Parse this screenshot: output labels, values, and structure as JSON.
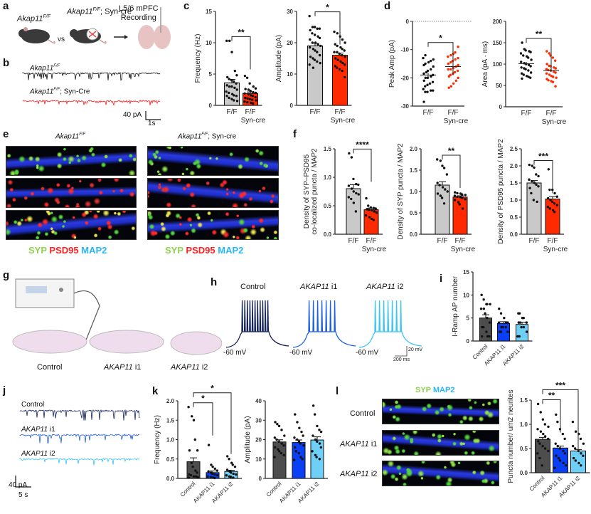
{
  "panels": {
    "a": "a",
    "b": "b",
    "c": "c",
    "d": "d",
    "e": "e",
    "f": "f",
    "g": "g",
    "h": "h",
    "i": "i",
    "j": "j",
    "k": "k",
    "l": "l"
  },
  "panel_a": {
    "group1": "Akap11",
    "group1_sup": "F/F",
    "vs": "vs",
    "group2": "Akap11",
    "group2_sup": "F/F",
    "group2_suffix": "; Syn-cre",
    "recording_line1": "L5/6 mPFC",
    "recording_line2": "Recording"
  },
  "panel_b": {
    "trace1": "Akap11",
    "trace1_sup": "F/F",
    "trace2": "Akap11",
    "trace2_sup": "F/F",
    "trace2_suffix": "; Syn-Cre",
    "scale_y": "40 pA",
    "scale_x": "1s"
  },
  "panel_e": {
    "col1": "Akap11",
    "col1_sup": "F/F",
    "col2": "Akap11",
    "col2_sup": "F/F",
    "col2_suffix": "; Syn-cre",
    "legend_syp": "SYP",
    "legend_psd95": "PSD95",
    "legend_map2": "MAP2"
  },
  "panel_g": {
    "labels": [
      "Control",
      "AKAP11",
      "AKAP11"
    ],
    "suffixes": [
      "",
      "i1",
      "i2"
    ]
  },
  "panel_h": {
    "titles": [
      "Control",
      "AKAP11",
      "AKAP11"
    ],
    "suffixes": [
      "",
      "i1",
      "i2"
    ],
    "baseline": "-60 mV",
    "scale_y": "20 mV",
    "scale_x": "200 ms"
  },
  "panel_j": {
    "labels": [
      "Control",
      "AKAP11",
      "AKAP11"
    ],
    "suffixes": [
      "",
      "i1",
      "i2"
    ],
    "scale_y": "40 pA",
    "scale_x": "5 s"
  },
  "panel_l": {
    "rows": [
      "Control",
      "AKAP11",
      "AKAP11"
    ],
    "suffixes": [
      "",
      "i1",
      "i2"
    ],
    "legend_syp": "SYP",
    "legend_map2": "MAP2"
  },
  "colors": {
    "grey": "#c9c9c9",
    "red": "#ff2a00",
    "dark": "#4d4d4d",
    "blue": "#0b3ff5",
    "lightblue": "#6fd0f7",
    "black": "#111111"
  },
  "chart_data": [
    {
      "id": "c1",
      "type": "bar",
      "ylabel": [
        "Frequency (Hz)"
      ],
      "ylim": [
        0,
        15
      ],
      "ticks": [
        0,
        5,
        10,
        15
      ],
      "categories": [
        "F/F",
        "F/F\nSyn-cre"
      ],
      "series": [
        {
          "name": "F/F",
          "color": "#c9c9c9",
          "mean": 3.6,
          "sem": 0.55,
          "points": [
            10.3,
            10.3,
            8.5,
            5.5,
            4.8,
            4.5,
            4.2,
            4,
            3.8,
            3.5,
            3.2,
            3,
            3,
            2.8,
            2.5,
            2.2,
            2,
            1.8,
            1.6,
            1.5,
            1.5,
            1.2,
            1,
            0.8,
            0.7
          ]
        },
        {
          "name": "F/F Syn-cre",
          "color": "#ff2a00",
          "mean": 1.9,
          "sem": 0.25,
          "points": [
            4.7,
            4.4,
            3.5,
            3,
            2.7,
            2.6,
            2.5,
            2.3,
            2.1,
            2,
            1.9,
            1.8,
            1.6,
            1.5,
            1.3,
            1.2,
            1.1,
            1,
            0.9,
            0.8,
            0.6,
            0.5,
            0.4,
            0.3
          ]
        }
      ],
      "significance": [
        {
          "between": [
            0,
            1
          ],
          "label": "**"
        }
      ]
    },
    {
      "id": "c2",
      "type": "bar",
      "ylabel": [
        "Amplitude (pA)"
      ],
      "ylim": [
        0,
        30
      ],
      "ticks": [
        0,
        10,
        20,
        30
      ],
      "categories": [
        "F/F",
        "F/F\nSyn-cre"
      ],
      "series": [
        {
          "name": "F/F",
          "color": "#c9c9c9",
          "mean": 19,
          "sem": 0.8,
          "points": [
            28.5,
            25,
            25,
            24.5,
            24.5,
            24,
            23,
            22.5,
            22,
            21.5,
            21,
            20,
            20,
            19.5,
            19,
            18.5,
            18,
            17.5,
            17,
            16,
            15.5,
            15,
            14.5,
            14,
            13.5,
            13,
            12
          ]
        },
        {
          "name": "F/F Syn-cre",
          "color": "#ff2a00",
          "mean": 16,
          "sem": 0.7,
          "points": [
            23.5,
            23,
            22,
            21,
            20,
            19.5,
            19,
            18.5,
            18,
            17.5,
            17,
            17,
            16.5,
            16,
            15.5,
            15,
            14.5,
            14,
            13.5,
            13,
            12.5,
            12,
            11.5,
            11,
            9
          ]
        }
      ],
      "significance": [
        {
          "between": [
            0,
            1
          ],
          "label": "*"
        }
      ]
    },
    {
      "id": "d1",
      "type": "scatter",
      "ylabel": [
        "Peak Amp (pA)"
      ],
      "ylim": [
        -30,
        0
      ],
      "ticks": [
        -30,
        -20,
        -10,
        0
      ],
      "zero_line": true,
      "categories": [
        "F/F",
        "F/F\nSyn-cre"
      ],
      "series": [
        {
          "name": "F/F",
          "color": "#111111",
          "mean": -19,
          "sem": 0.8,
          "points": [
            -28.5,
            -25,
            -25,
            -24.5,
            -24.5,
            -24,
            -23,
            -22.5,
            -22,
            -21.5,
            -21,
            -20,
            -20,
            -19.5,
            -19,
            -18.5,
            -18,
            -17.5,
            -17,
            -16,
            -15.5,
            -15,
            -14.5,
            -14,
            -13.5,
            -13,
            -12
          ]
        },
        {
          "name": "F/F Syn-cre",
          "color": "#ff2a00",
          "mean": -16,
          "sem": 0.7,
          "points": [
            -23.5,
            -23,
            -22,
            -21,
            -20,
            -19.5,
            -19,
            -18.5,
            -18,
            -17.5,
            -17,
            -17,
            -16.5,
            -16,
            -15.5,
            -15,
            -14.5,
            -14,
            -13.5,
            -13,
            -12.5,
            -12,
            -11.5,
            -11,
            -9
          ]
        }
      ],
      "significance": [
        {
          "between": [
            0,
            1
          ],
          "label": "*"
        }
      ]
    },
    {
      "id": "d2",
      "type": "scatter",
      "ylabel": [
        "Area (pA · ms)"
      ],
      "ylim": [
        0,
        200
      ],
      "ticks": [
        0,
        50,
        100,
        150,
        200
      ],
      "categories": [
        "F/F",
        "F/F\nSyn-cre"
      ],
      "series": [
        {
          "name": "F/F",
          "color": "#111111",
          "mean": 101,
          "sem": 4,
          "points": [
            150,
            135,
            132,
            130,
            128,
            125,
            120,
            118,
            115,
            110,
            105,
            102,
            100,
            98,
            95,
            92,
            90,
            88,
            85,
            80,
            78,
            75,
            72,
            70,
            68,
            66
          ]
        },
        {
          "name": "F/F Syn-cre",
          "color": "#ff2a00",
          "mean": 85,
          "sem": 3.5,
          "points": [
            130,
            125,
            120,
            115,
            108,
            100,
            96,
            95,
            92,
            90,
            88,
            86,
            85,
            82,
            80,
            78,
            75,
            72,
            70,
            68,
            65,
            62,
            60,
            58,
            48
          ]
        }
      ],
      "significance": [
        {
          "between": [
            0,
            1
          ],
          "label": "**"
        }
      ]
    },
    {
      "id": "f1",
      "type": "bar",
      "ylabel": [
        "Density of SYP–PSD95",
        "co-localized puncta / MAP2"
      ],
      "ylim": [
        0,
        1.5
      ],
      "ticks": [
        0.0,
        0.5,
        1.0,
        1.5
      ],
      "tick_decimals": 1,
      "categories": [
        "F/F",
        "F/F\nSyn-cre"
      ],
      "series": [
        {
          "name": "F/F",
          "color": "#c9c9c9",
          "mean": 0.8,
          "sem": 0.07,
          "points": [
            1.42,
            1.35,
            0.97,
            0.88,
            0.87,
            0.85,
            0.8,
            0.75,
            0.72,
            0.7,
            0.65,
            0.62,
            0.55,
            0.4
          ]
        },
        {
          "name": "F/F Syn-cre",
          "color": "#ff2a00",
          "mean": 0.43,
          "sem": 0.03,
          "points": [
            0.63,
            0.5,
            0.47,
            0.46,
            0.45,
            0.44,
            0.43,
            0.42,
            0.4,
            0.38,
            0.33,
            0.3,
            0.27,
            0.25
          ]
        }
      ],
      "significance": [
        {
          "between": [
            0,
            1
          ],
          "label": "****"
        }
      ]
    },
    {
      "id": "f2",
      "type": "bar",
      "ylabel": [
        "Density of SYP puncta / MAP2"
      ],
      "ylim": [
        0,
        2
      ],
      "ticks": [
        0.0,
        0.5,
        1.0,
        1.5,
        2.0
      ],
      "tick_decimals": 1,
      "categories": [
        "F/F",
        "F/F\nSyn-cre"
      ],
      "series": [
        {
          "name": "F/F",
          "color": "#c9c9c9",
          "mean": 1.15,
          "sem": 0.08,
          "points": [
            1.75,
            1.72,
            1.6,
            1.55,
            1.4,
            1.2,
            1.15,
            1.1,
            1.05,
            1.0,
            0.95,
            0.9,
            0.85,
            0.72
          ]
        },
        {
          "name": "F/F Syn-cre",
          "color": "#ff2a00",
          "mean": 0.87,
          "sem": 0.03,
          "points": [
            0.98,
            0.96,
            0.95,
            0.93,
            0.92,
            0.9,
            0.88,
            0.87,
            0.85,
            0.82,
            0.8,
            0.75,
            0.7,
            0.6
          ]
        }
      ],
      "significance": [
        {
          "between": [
            0,
            1
          ],
          "label": "**"
        }
      ]
    },
    {
      "id": "f3",
      "type": "bar",
      "ylabel": [
        "Density of PSD95 puncta / MAP2"
      ],
      "ylim": [
        0,
        2.5
      ],
      "ticks": [
        0.0,
        0.5,
        1.0,
        1.5,
        2.0,
        2.5
      ],
      "tick_decimals": 1,
      "categories": [
        "F/F",
        "F/F\nSyn-cre"
      ],
      "series": [
        {
          "name": "F/F",
          "color": "#c9c9c9",
          "mean": 1.5,
          "sem": 0.07,
          "points": [
            2.03,
            2.0,
            1.95,
            1.75,
            1.7,
            1.6,
            1.55,
            1.5,
            1.45,
            1.4,
            1.35,
            1.2,
            1.0,
            0.95
          ]
        },
        {
          "name": "F/F Syn-cre",
          "color": "#ff2a00",
          "mean": 1.03,
          "sem": 0.07,
          "points": [
            1.9,
            1.3,
            1.3,
            1.2,
            1.1,
            1.05,
            1.0,
            0.95,
            0.9,
            0.85,
            0.8,
            0.75,
            0.7,
            0.65
          ]
        }
      ],
      "significance": [
        {
          "between": [
            0,
            1
          ],
          "label": "***"
        }
      ]
    },
    {
      "id": "i",
      "type": "bar",
      "ylabel": [
        "I-Ramp AP number"
      ],
      "ylim": [
        0,
        15
      ],
      "ticks": [
        0,
        5,
        10,
        15
      ],
      "rotate_labels": true,
      "categories": [
        "Control",
        "AKAP11 i1",
        "AKAP11 i2"
      ],
      "series": [
        {
          "name": "Control",
          "color": "#4d4d4d",
          "mean": 5.0,
          "sem": 0.7,
          "points": [
            10,
            9,
            8,
            8,
            8,
            7,
            7,
            6,
            5,
            4,
            3,
            3,
            2,
            1,
            1,
            1
          ]
        },
        {
          "name": "AKAP11 i1",
          "color": "#0b3ff5",
          "mean": 3.8,
          "sem": 0.4,
          "points": [
            7,
            6,
            5,
            4,
            4,
            4,
            3,
            3,
            3,
            2,
            2,
            2
          ]
        },
        {
          "name": "AKAP11 i2",
          "color": "#6fd0f7",
          "mean": 3.6,
          "sem": 0.5,
          "points": [
            6,
            6,
            5,
            5,
            4,
            4,
            4,
            3,
            3,
            2,
            1,
            1
          ]
        }
      ],
      "significance": []
    },
    {
      "id": "k1",
      "type": "bar",
      "ylabel": [
        "Frequency (Hz)"
      ],
      "ylim": [
        0,
        2
      ],
      "ticks": [
        0.0,
        0.5,
        1.0,
        1.5,
        2.0
      ],
      "tick_decimals": 1,
      "rotate_labels": true,
      "categories": [
        "Control",
        "AKAP11 i1",
        "AKAP11 i2"
      ],
      "series": [
        {
          "name": "Control",
          "color": "#4d4d4d",
          "mean": 0.43,
          "sem": 0.1,
          "points": [
            1.84,
            1.6,
            1.5,
            1.0,
            0.72,
            0.72,
            0.4,
            0.3,
            0.2,
            0.15,
            0.1,
            0.08,
            0.05,
            0.05,
            0.03,
            0.02
          ]
        },
        {
          "name": "AKAP11 i1",
          "color": "#0b3ff5",
          "mean": 0.15,
          "sem": 0.04,
          "points": [
            0.86,
            0.35,
            0.3,
            0.25,
            0.2,
            0.18,
            0.15,
            0.12,
            0.1,
            0.08,
            0.05,
            0.03,
            0.02,
            0.01
          ]
        },
        {
          "name": "AKAP11 i2",
          "color": "#6fd0f7",
          "mean": 0.18,
          "sem": 0.03,
          "points": [
            0.57,
            0.5,
            0.4,
            0.35,
            0.3,
            0.22,
            0.18,
            0.15,
            0.12,
            0.1,
            0.08,
            0.05,
            0.04,
            0.02
          ]
        }
      ],
      "significance": [
        {
          "between": [
            0,
            1
          ],
          "label": "*"
        },
        {
          "between": [
            0,
            2
          ],
          "label": "*"
        }
      ]
    },
    {
      "id": "k2",
      "type": "bar",
      "ylabel": [
        "Amplitude (pA)"
      ],
      "ylim": [
        0,
        40
      ],
      "ticks": [
        0,
        10,
        20,
        30,
        40
      ],
      "rotate_labels": true,
      "categories": [
        "Control",
        "AKAP11 i1",
        "AKAP11 i2"
      ],
      "series": [
        {
          "name": "Control",
          "color": "#4d4d4d",
          "mean": 18.8,
          "sem": 1.1,
          "points": [
            29,
            28,
            27,
            25,
            22,
            21,
            20,
            19,
            18,
            17,
            16,
            15,
            14,
            13,
            12,
            11
          ]
        },
        {
          "name": "AKAP11 i1",
          "color": "#0b3ff5",
          "mean": 18.5,
          "sem": 1.3,
          "points": [
            33,
            29,
            26,
            24,
            22,
            21,
            20,
            19,
            18,
            17,
            16,
            14,
            13,
            11,
            10,
            9.5
          ]
        },
        {
          "name": "AKAP11 i2",
          "color": "#6fd0f7",
          "mean": 19.8,
          "sem": 1.6,
          "points": [
            37.5,
            33,
            27,
            25,
            24,
            22,
            20,
            19,
            18,
            16,
            14,
            12,
            11,
            10
          ]
        }
      ],
      "significance": []
    },
    {
      "id": "l",
      "type": "bar",
      "ylabel": [
        "Puncta number/ um2 neurites"
      ],
      "ylim": [
        0,
        1.5
      ],
      "ticks": [
        0.0,
        0.5,
        1.0,
        1.5
      ],
      "tick_decimals": 1,
      "rotate_labels": true,
      "categories": [
        "Control",
        "AKAP11 i1",
        "AKAP11 i2"
      ],
      "series": [
        {
          "name": "Control",
          "color": "#4d4d4d",
          "mean": 0.69,
          "sem": 0.04,
          "points": [
            1.42,
            1.25,
            1.1,
            1.0,
            0.95,
            0.9,
            0.85,
            0.8,
            0.75,
            0.7,
            0.65,
            0.6,
            0.55,
            0.5,
            0.45,
            0.4,
            0.3,
            0.15
          ]
        },
        {
          "name": "AKAP11 i1",
          "color": "#0b3ff5",
          "mean": 0.51,
          "sem": 0.04,
          "points": [
            1.2,
            1.05,
            0.9,
            0.8,
            0.7,
            0.6,
            0.55,
            0.5,
            0.45,
            0.4,
            0.35,
            0.3,
            0.25,
            0.2,
            0.15,
            0.1
          ]
        },
        {
          "name": "AKAP11 i2",
          "color": "#6fd0f7",
          "mean": 0.45,
          "sem": 0.03,
          "points": [
            1.05,
            0.85,
            0.8,
            0.7,
            0.6,
            0.55,
            0.5,
            0.45,
            0.4,
            0.35,
            0.3,
            0.25,
            0.2,
            0.15
          ]
        }
      ],
      "significance": [
        {
          "between": [
            0,
            1
          ],
          "label": "**"
        },
        {
          "between": [
            0,
            2
          ],
          "label": "***"
        }
      ]
    }
  ]
}
